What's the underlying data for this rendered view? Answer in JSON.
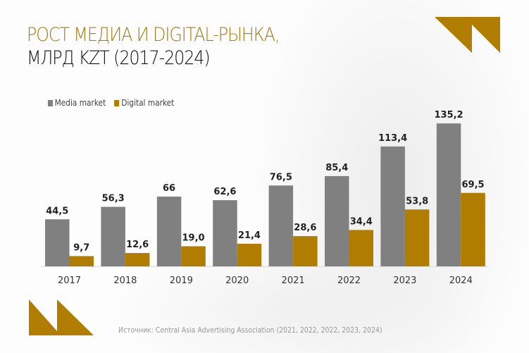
{
  "title_line1": "РОСТ МЕДИА И DIGITAL-РЫНКА,",
  "title_line2": "МЛРД KZT (2017-2024)",
  "source": "Источник: Central Asia Advertising Association  (2021, 2022, 2022, 2023, 2024)",
  "colors": {
    "accent": "#b07d00",
    "media": "#808080",
    "digital": "#b07d00",
    "title_accent": "#a97a12"
  },
  "chart_data": {
    "type": "bar",
    "categories": [
      "2017",
      "2018",
      "2019",
      "2020",
      "2021",
      "2022",
      "2023",
      "2024"
    ],
    "series": [
      {
        "name": "Media market",
        "values": [
          44.5,
          56.3,
          66,
          62.6,
          76.5,
          85.4,
          113.4,
          135.2
        ],
        "labels": [
          "44,5",
          "56,3",
          "66",
          "62,6",
          "76,5",
          "85,4",
          "113,4",
          "135,2"
        ]
      },
      {
        "name": "Digital market",
        "values": [
          9.7,
          12.6,
          19.0,
          21.4,
          28.6,
          34.4,
          53.8,
          69.5
        ],
        "labels": [
          "9,7",
          "12,6",
          "19,0",
          "21,4",
          "28,6",
          "34,4",
          "53,8",
          "69,5"
        ]
      }
    ],
    "legend": "top-left",
    "grid": false
  }
}
